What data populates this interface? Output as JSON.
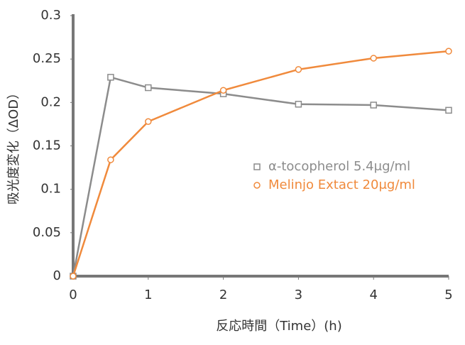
{
  "chart_data": {
    "type": "line",
    "y_label": "吸光度変化（ΔOD）",
    "x_label": "反応時間（Time）(h)",
    "x": [
      0,
      0.5,
      1,
      2,
      3,
      4,
      5
    ],
    "series": [
      {
        "name": "α-tocopherol  5.4μg/ml",
        "color": "#8c8c8c",
        "marker": "square",
        "values": [
          0,
          0.229,
          0.217,
          0.21,
          0.198,
          0.197,
          0.191
        ]
      },
      {
        "name": "Melinjo Extact 20μg/ml",
        "color": "#f08a3c",
        "marker": "circle",
        "values": [
          0,
          0.134,
          0.178,
          0.214,
          0.238,
          0.251,
          0.259
        ]
      }
    ],
    "xlim": [
      0,
      5
    ],
    "xticks": [
      0,
      1,
      2,
      3,
      4,
      5
    ],
    "ylim": [
      0,
      0.3
    ],
    "yticks": [
      0,
      0.05,
      0.1,
      0.15,
      0.2,
      0.25,
      0.3
    ],
    "grid": false
  }
}
